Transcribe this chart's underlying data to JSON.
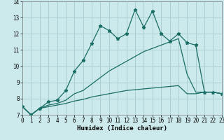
{
  "xlabel": "Humidex (Indice chaleur)",
  "background_color": "#cce9eb",
  "grid_color": "#aacfd2",
  "line_color": "#1a6e65",
  "x_values": [
    0,
    1,
    2,
    3,
    4,
    5,
    6,
    7,
    8,
    9,
    10,
    11,
    12,
    13,
    14,
    15,
    16,
    17,
    18,
    19,
    20,
    21,
    22,
    23
  ],
  "line1": [
    7.5,
    7.0,
    7.4,
    7.8,
    7.9,
    8.5,
    9.7,
    10.35,
    11.4,
    12.5,
    12.2,
    11.7,
    12.0,
    13.5,
    12.4,
    13.4,
    12.0,
    11.55,
    12.0,
    11.45,
    11.3,
    8.4,
    8.4,
    8.3
  ],
  "line2": [
    7.5,
    7.0,
    7.4,
    7.6,
    7.7,
    7.9,
    8.3,
    8.5,
    8.9,
    9.3,
    9.7,
    10.0,
    10.3,
    10.6,
    10.9,
    11.1,
    11.3,
    11.5,
    11.7,
    9.5,
    8.4,
    8.4,
    8.4,
    8.3
  ],
  "line3": [
    7.5,
    7.0,
    7.4,
    7.5,
    7.6,
    7.7,
    7.85,
    7.95,
    8.1,
    8.2,
    8.3,
    8.4,
    8.5,
    8.55,
    8.6,
    8.65,
    8.7,
    8.75,
    8.8,
    8.3,
    8.3,
    8.4,
    8.4,
    8.3
  ],
  "ylim": [
    7,
    14
  ],
  "xlim": [
    0,
    23
  ],
  "yticks": [
    7,
    8,
    9,
    10,
    11,
    12,
    13,
    14
  ],
  "xticks": [
    0,
    1,
    2,
    3,
    4,
    5,
    6,
    7,
    8,
    9,
    10,
    11,
    12,
    13,
    14,
    15,
    16,
    17,
    18,
    19,
    20,
    21,
    22,
    23
  ],
  "tick_fontsize": 5.5,
  "label_fontsize": 6.5
}
